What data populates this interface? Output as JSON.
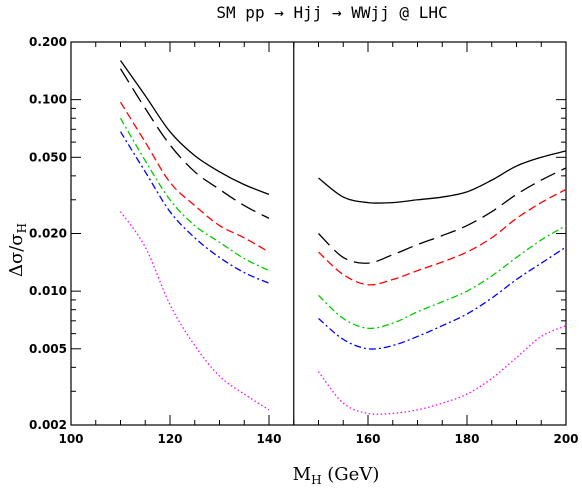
{
  "chart_data": {
    "type": "line",
    "title": "SM pp → Hjj → WWjj @ LHC",
    "xlabel_main": "M",
    "xlabel_sub": "H",
    "xlabel_tail": " (GeV)",
    "ylabel_main": "Δσ/σ",
    "ylabel_sub": "H",
    "xlim": [
      100,
      200
    ],
    "ylim": [
      0.002,
      0.2
    ],
    "yscale": "log",
    "x_ticks": [
      100,
      120,
      140,
      160,
      180,
      200
    ],
    "x_tick_labels": [
      "100",
      "120",
      "140",
      "160",
      "180",
      "200"
    ],
    "y_ticks": [
      0.002,
      0.005,
      0.01,
      0.02,
      0.05,
      0.1,
      0.2
    ],
    "y_tick_labels": [
      "0.002",
      "0.005",
      "0.010",
      "0.020",
      "0.050",
      "0.100",
      "0.200"
    ],
    "divider_x": 145,
    "grid": false,
    "series": [
      {
        "color": "#000000",
        "style": "solid",
        "segments": [
          {
            "x": [
              110,
              115,
              120,
              125,
              130,
              135,
              140
            ],
            "y": [
              0.16,
              0.105,
              0.068,
              0.051,
              0.042,
              0.036,
              0.032
            ]
          },
          {
            "x": [
              150,
              155,
              160,
              165,
              170,
              175,
              180,
              185,
              190,
              195,
              200
            ],
            "y": [
              0.039,
              0.031,
              0.029,
              0.029,
              0.03,
              0.031,
              0.033,
              0.038,
              0.045,
              0.05,
              0.054
            ]
          }
        ]
      },
      {
        "color": "#000000",
        "style": "longdash",
        "segments": [
          {
            "x": [
              110,
              115,
              120,
              125,
              130,
              135,
              140
            ],
            "y": [
              0.145,
              0.09,
              0.058,
              0.042,
              0.034,
              0.028,
              0.024
            ]
          },
          {
            "x": [
              150,
              155,
              160,
              165,
              170,
              175,
              180,
              185,
              190,
              195,
              200
            ],
            "y": [
              0.02,
              0.015,
              0.014,
              0.0155,
              0.0175,
              0.0195,
              0.022,
              0.026,
              0.032,
              0.038,
              0.044
            ]
          }
        ]
      },
      {
        "color": "#ff0000",
        "style": "dashed",
        "segments": [
          {
            "x": [
              110,
              115,
              120,
              125,
              130,
              135,
              140
            ],
            "y": [
              0.097,
              0.06,
              0.037,
              0.028,
              0.022,
              0.019,
              0.016
            ]
          },
          {
            "x": [
              150,
              155,
              160,
              165,
              170,
              175,
              180,
              185,
              190,
              195,
              200
            ],
            "y": [
              0.016,
              0.0122,
              0.0108,
              0.0115,
              0.0128,
              0.0142,
              0.016,
              0.019,
              0.024,
              0.029,
              0.034
            ]
          }
        ]
      },
      {
        "color": "#00cc00",
        "style": "dashdot",
        "segments": [
          {
            "x": [
              110,
              115,
              120,
              125,
              130,
              135,
              140
            ],
            "y": [
              0.08,
              0.048,
              0.03,
              0.022,
              0.018,
              0.0148,
              0.0128
            ]
          },
          {
            "x": [
              150,
              155,
              160,
              165,
              170,
              175,
              180,
              185,
              190,
              195,
              200
            ],
            "y": [
              0.0095,
              0.0072,
              0.0064,
              0.0068,
              0.0078,
              0.0088,
              0.01,
              0.012,
              0.015,
              0.0185,
              0.022
            ]
          }
        ]
      },
      {
        "color": "#0000ff",
        "style": "dashdot",
        "segments": [
          {
            "x": [
              110,
              115,
              120,
              125,
              130,
              135,
              140
            ],
            "y": [
              0.068,
              0.042,
              0.026,
              0.019,
              0.015,
              0.0125,
              0.011
            ]
          },
          {
            "x": [
              150,
              155,
              160,
              165,
              170,
              175,
              180,
              185,
              190,
              195,
              200
            ],
            "y": [
              0.0072,
              0.0056,
              0.005,
              0.0052,
              0.0058,
              0.0066,
              0.0076,
              0.0092,
              0.0115,
              0.014,
              0.017
            ]
          }
        ]
      },
      {
        "color": "#ff00ff",
        "style": "dotted",
        "segments": [
          {
            "x": [
              110,
              115,
              120,
              125,
              130,
              135,
              140
            ],
            "y": [
              0.026,
              0.017,
              0.0085,
              0.0052,
              0.0036,
              0.0029,
              0.0024
            ]
          },
          {
            "x": [
              150,
              155,
              160,
              165,
              170,
              175,
              180,
              185,
              190,
              195,
              200
            ],
            "y": [
              0.0038,
              0.0026,
              0.0023,
              0.0023,
              0.0024,
              0.0026,
              0.0029,
              0.0035,
              0.0045,
              0.0058,
              0.0066
            ]
          }
        ]
      }
    ]
  }
}
